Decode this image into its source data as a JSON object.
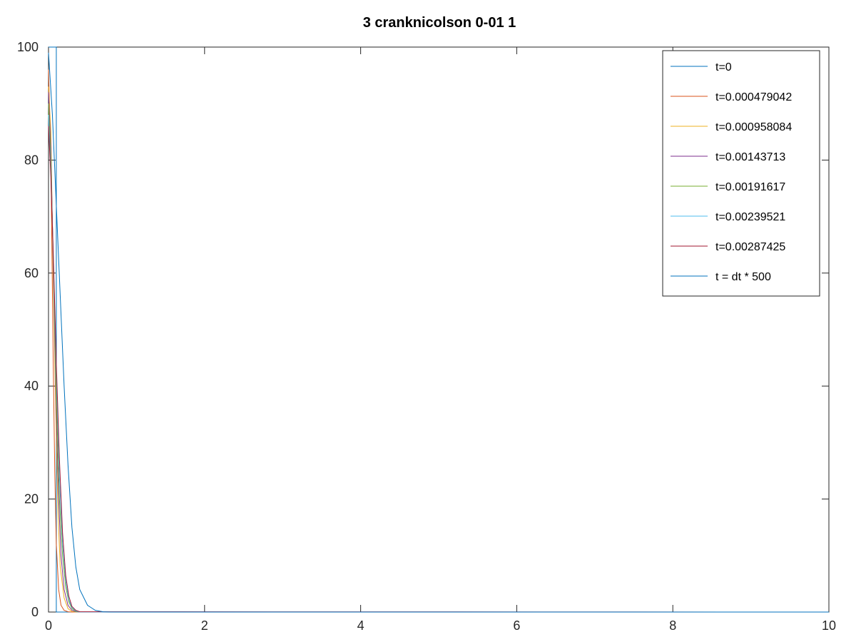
{
  "chart_data": {
    "type": "line",
    "title": "3 cranknicolson 0-01 1",
    "xlabel": "",
    "ylabel": "",
    "xlim": [
      0,
      10
    ],
    "ylim": [
      0,
      100
    ],
    "xticks": [
      "0",
      "2",
      "4",
      "6",
      "8",
      "10"
    ],
    "yticks": [
      "0",
      "20",
      "40",
      "60",
      "80",
      "100"
    ],
    "grid": false,
    "legend_position": "top-right",
    "series": [
      {
        "name": "t=0",
        "color": "#0072bd",
        "x": [
          0.0,
          0.1,
          0.1,
          0.2,
          0.3,
          0.4,
          0.5,
          0.6,
          0.7,
          0.8,
          0.9,
          1.0,
          10.0
        ],
        "y": [
          100,
          100,
          0,
          0,
          0,
          0,
          0,
          0,
          0,
          0,
          0,
          0,
          0
        ]
      },
      {
        "name": "t=0.000479042",
        "color": "#d95319",
        "x": [
          0.0,
          0.03,
          0.06,
          0.08,
          0.1,
          0.13,
          0.16,
          0.2,
          0.25,
          0.3,
          0.4,
          10.0
        ],
        "y": [
          96,
          80,
          45,
          25,
          12,
          4,
          1.2,
          0.3,
          0.05,
          0,
          0,
          0
        ]
      },
      {
        "name": "t=0.000958084",
        "color": "#edb120",
        "x": [
          0.0,
          0.03,
          0.06,
          0.09,
          0.12,
          0.15,
          0.2,
          0.25,
          0.3,
          0.35,
          0.4,
          10.0
        ],
        "y": [
          93,
          85,
          60,
          38,
          18,
          8,
          2.5,
          0.6,
          0.1,
          0,
          0,
          0
        ]
      },
      {
        "name": "t=0.00143713",
        "color": "#7e2f8e",
        "x": [
          0.0,
          0.03,
          0.06,
          0.1,
          0.13,
          0.16,
          0.2,
          0.25,
          0.3,
          0.35,
          0.4,
          10.0
        ],
        "y": [
          92,
          82,
          62,
          35,
          20,
          10,
          4,
          1.2,
          0.3,
          0.05,
          0,
          0
        ]
      },
      {
        "name": "t=0.00191617",
        "color": "#77ac30",
        "x": [
          0.0,
          0.03,
          0.06,
          0.1,
          0.14,
          0.18,
          0.22,
          0.26,
          0.3,
          0.35,
          0.4,
          10.0
        ],
        "y": [
          90,
          80,
          63,
          38,
          20,
          10,
          4.5,
          1.8,
          0.6,
          0.1,
          0,
          0
        ]
      },
      {
        "name": "t=0.00239521",
        "color": "#4dbeee",
        "x": [
          0.0,
          0.03,
          0.06,
          0.1,
          0.14,
          0.18,
          0.22,
          0.26,
          0.3,
          0.35,
          0.4,
          10.0
        ],
        "y": [
          88,
          78,
          64,
          42,
          24,
          12,
          5.5,
          2.2,
          0.8,
          0.2,
          0,
          0
        ]
      },
      {
        "name": "t=0.00287425",
        "color": "#a2142f",
        "x": [
          0.0,
          0.03,
          0.06,
          0.1,
          0.14,
          0.18,
          0.22,
          0.26,
          0.3,
          0.35,
          0.4,
          10.0
        ],
        "y": [
          86,
          77,
          64,
          44,
          27,
          14,
          6.5,
          2.8,
          1.0,
          0.3,
          0.05,
          0
        ]
      },
      {
        "name": "t = dt * 500",
        "color": "#0072bd",
        "x": [
          0.0,
          0.05,
          0.1,
          0.15,
          0.2,
          0.25,
          0.3,
          0.35,
          0.4,
          0.5,
          0.6,
          0.7,
          0.8,
          0.9,
          10.0
        ],
        "y": [
          99,
          88,
          72,
          56,
          40,
          26,
          15,
          8,
          4,
          1.2,
          0.3,
          0.05,
          0,
          0,
          0
        ]
      }
    ]
  }
}
